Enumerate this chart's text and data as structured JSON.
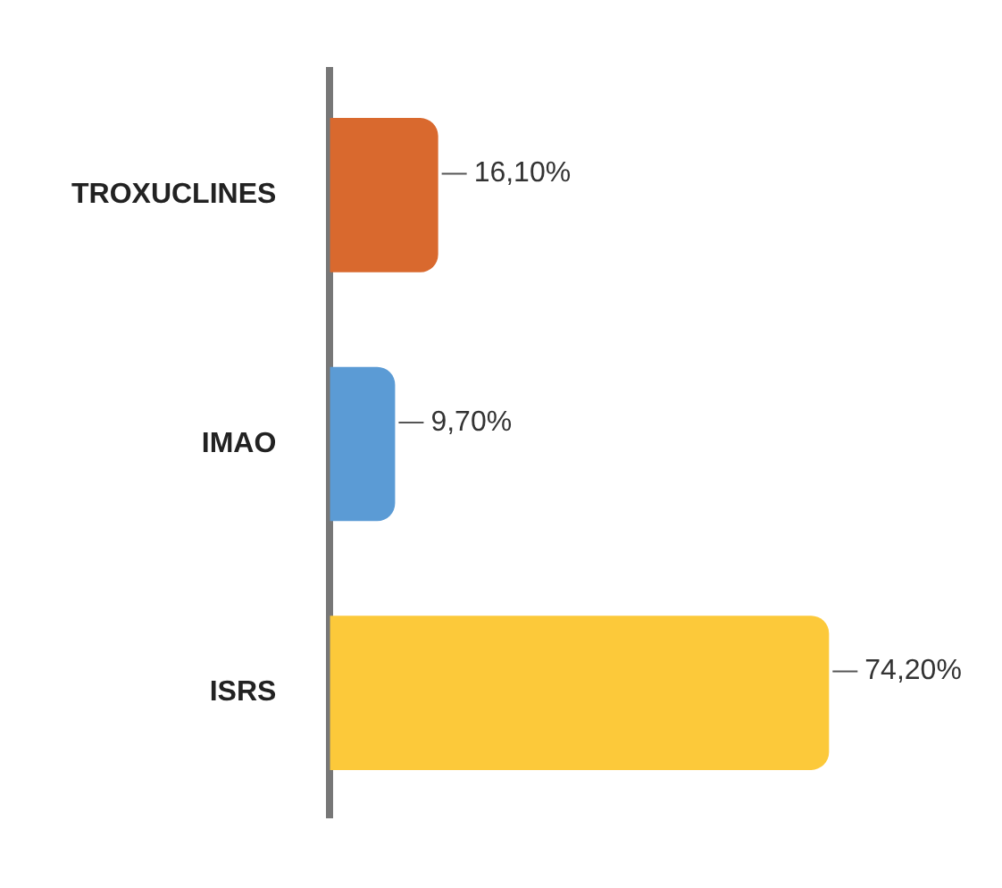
{
  "chart_data": {
    "type": "bar",
    "orientation": "horizontal",
    "categories": [
      "TROXUCLINES",
      "IMAO",
      "ISRS"
    ],
    "values": [
      16.1,
      9.7,
      74.2
    ],
    "colors": [
      "#d9692e",
      "#5b9bd5",
      "#fcc93a"
    ],
    "value_labels": [
      "16,10%",
      "9,70%",
      "74,20%"
    ],
    "grid": false,
    "legend": false,
    "tick_labels": "y"
  }
}
